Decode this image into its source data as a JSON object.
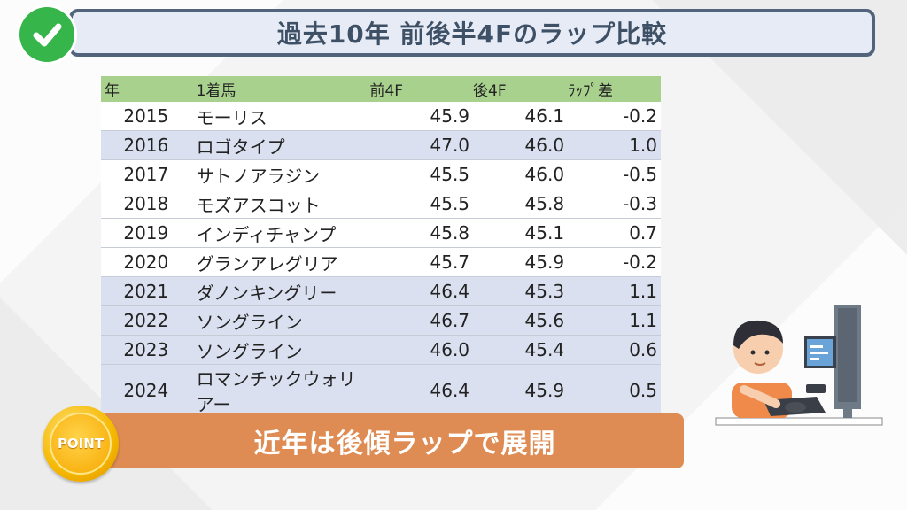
{
  "header": {
    "title": "過去10年 前後半4Fのラップ比較"
  },
  "table": {
    "columns": [
      "年",
      "1着馬",
      "前4F",
      "後4F",
      "ﾗｯﾌﾟ差"
    ],
    "rows": [
      {
        "year": "2015",
        "horse": "モーリス",
        "first4f": "45.9",
        "last4f": "46.1",
        "diff": "-0.2"
      },
      {
        "year": "2016",
        "horse": "ロゴタイプ",
        "first4f": "47.0",
        "last4f": "46.0",
        "diff": "1.0"
      },
      {
        "year": "2017",
        "horse": "サトノアラジン",
        "first4f": "45.5",
        "last4f": "46.0",
        "diff": "-0.5"
      },
      {
        "year": "2018",
        "horse": "モズアスコット",
        "first4f": "45.5",
        "last4f": "45.8",
        "diff": "-0.3"
      },
      {
        "year": "2019",
        "horse": "インディチャンプ",
        "first4f": "45.8",
        "last4f": "45.1",
        "diff": "0.7"
      },
      {
        "year": "2020",
        "horse": "グランアレグリア",
        "first4f": "45.7",
        "last4f": "45.9",
        "diff": "-0.2"
      },
      {
        "year": "2021",
        "horse": "ダノンキングリー",
        "first4f": "46.4",
        "last4f": "45.3",
        "diff": "1.1"
      },
      {
        "year": "2022",
        "horse": "ソングライン",
        "first4f": "46.7",
        "last4f": "45.6",
        "diff": "1.1"
      },
      {
        "year": "2023",
        "horse": "ソングライン",
        "first4f": "46.0",
        "last4f": "45.4",
        "diff": "0.6"
      },
      {
        "year": "2024",
        "horse": "ロマンチックウォリアー",
        "first4f": "46.4",
        "last4f": "45.9",
        "diff": "0.5"
      }
    ]
  },
  "point": {
    "badge": "POINT",
    "text": "近年は後傾ラップで展開"
  },
  "icons": {
    "check": "check-icon",
    "illustration": "person-at-computer-illustration"
  },
  "colors": {
    "header_green": "#a9d18e",
    "shade_blue": "#dae0ef",
    "banner_orange": "#de8c54",
    "title_border": "#52647c"
  }
}
